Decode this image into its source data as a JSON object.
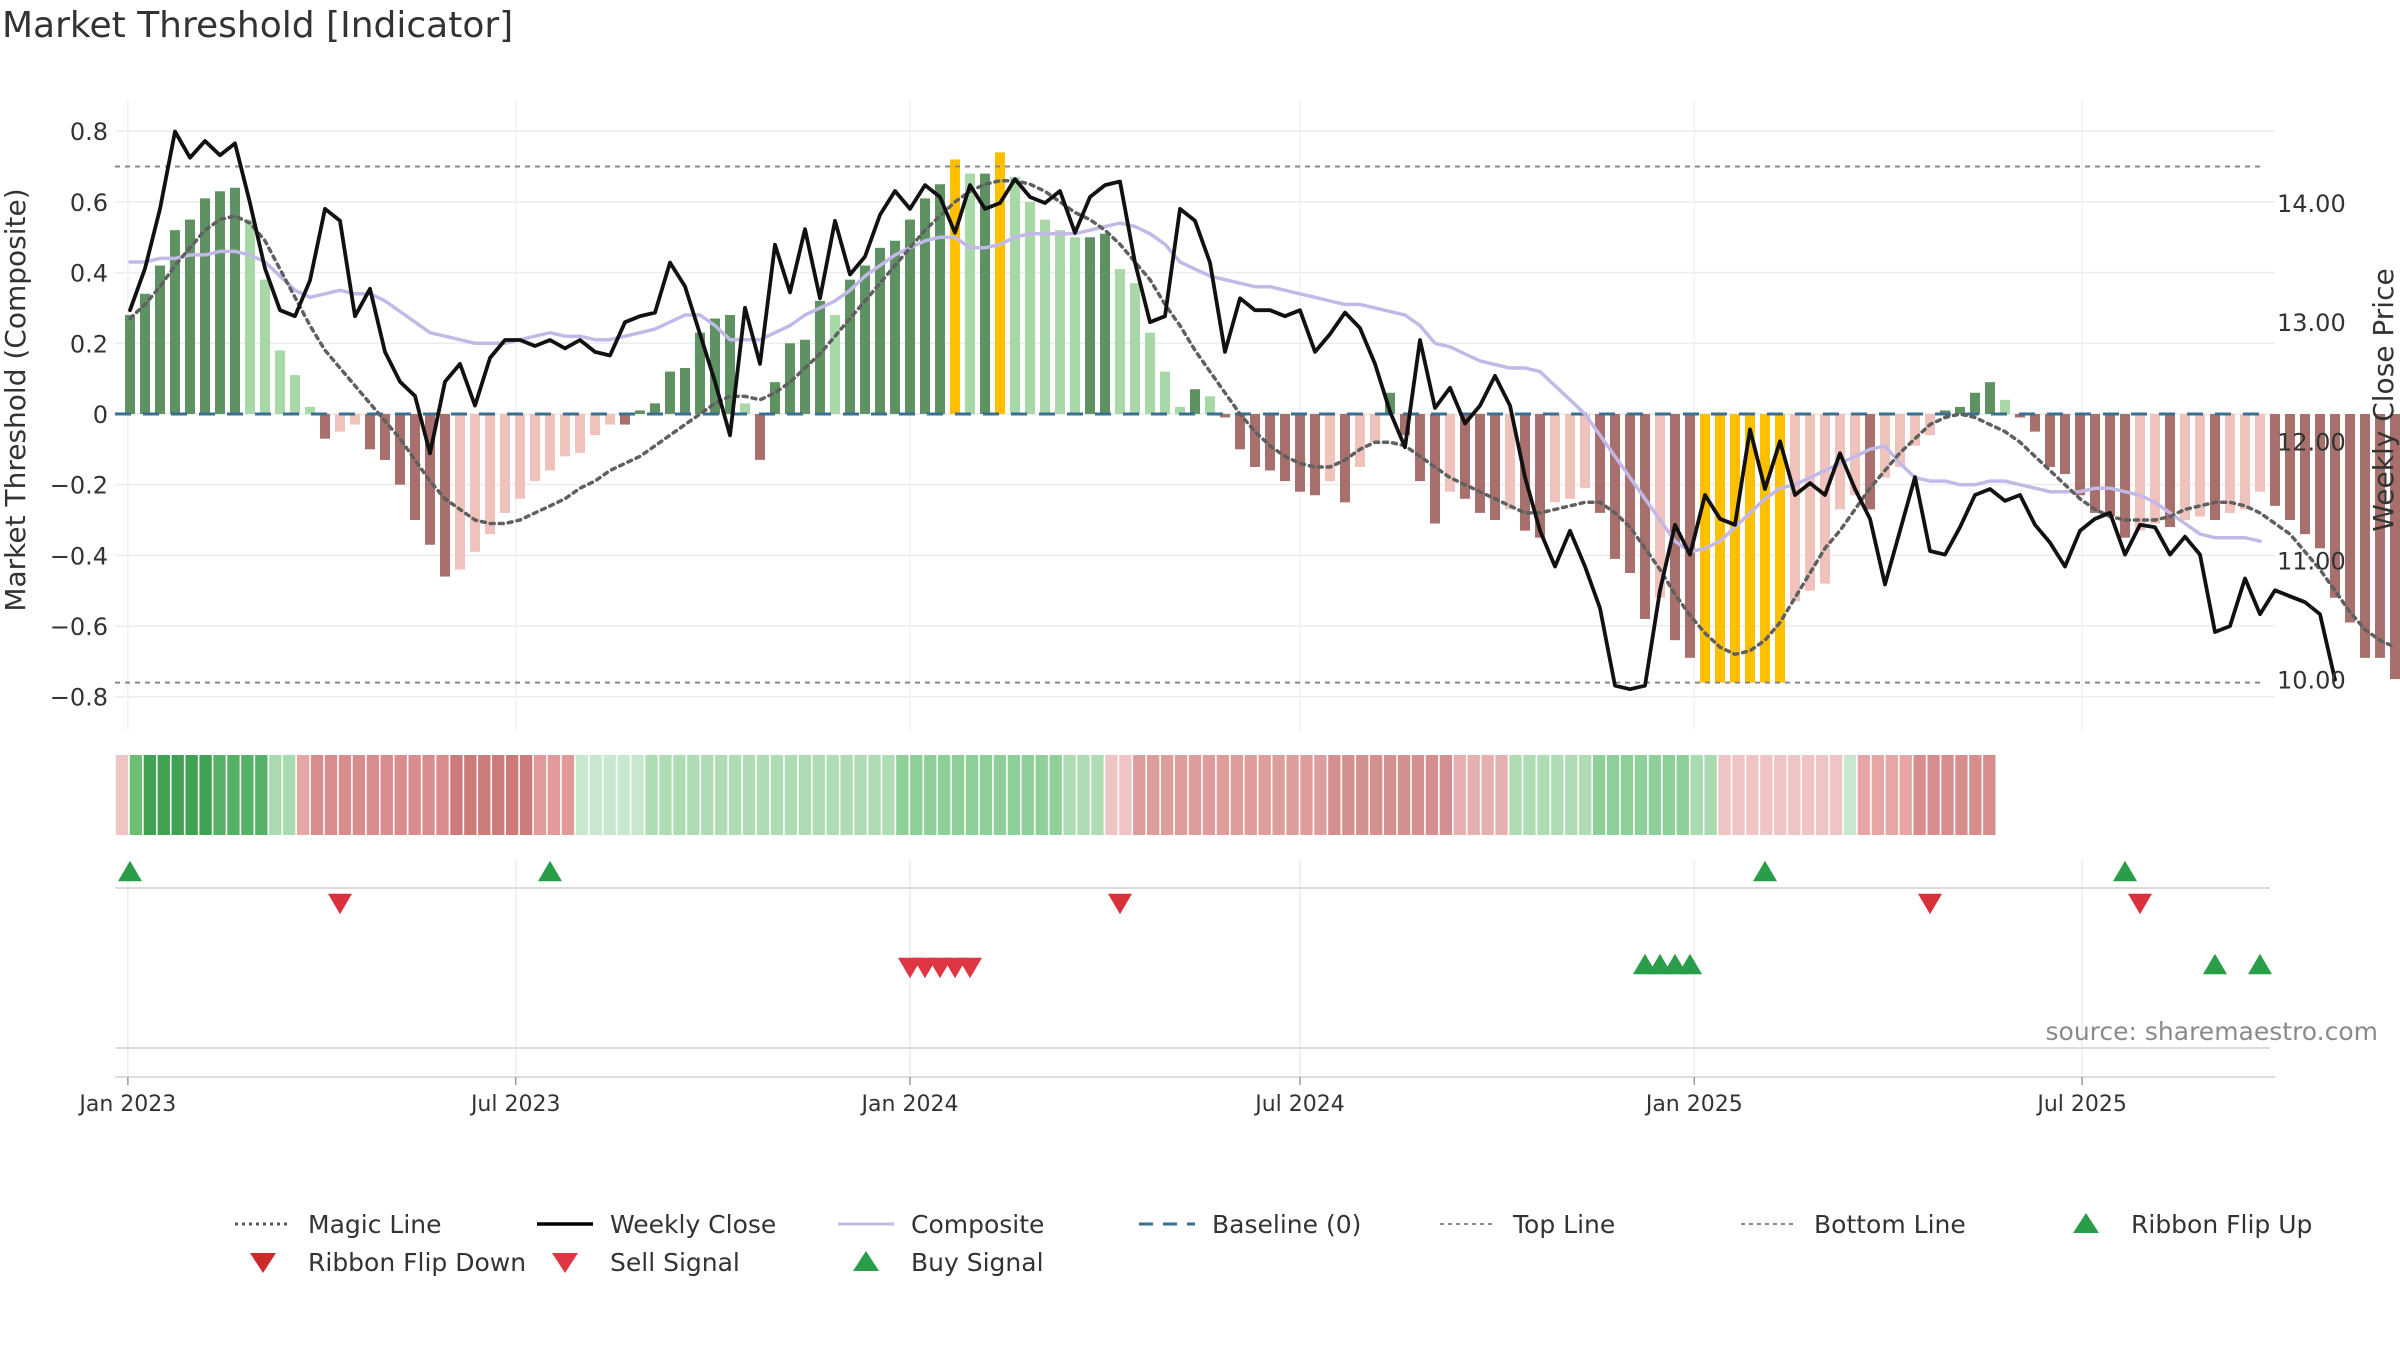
{
  "chart_data": {
    "type": "bar+line",
    "title": "Market Threshold [Indicator]",
    "source": "source: sharemaestro.com",
    "ylabel_left": "Market Threshold (Composite)",
    "ylabel_right": "Weekly Close Price",
    "ylim_left": [
      -0.88,
      0.86
    ],
    "ylim_right": [
      9.62,
      14.78
    ],
    "yticks_left": [
      0.8,
      0.6,
      0.4,
      0.2,
      0,
      -0.2,
      -0.4,
      -0.6,
      -0.8
    ],
    "yticks_left_labels": [
      "0.8",
      "0.6",
      "0.4",
      "0.2",
      "0",
      "−0.2",
      "−0.4",
      "−0.6",
      "−0.8"
    ],
    "yticks_right": [
      14.0,
      13.0,
      12.0,
      11.0,
      10.0
    ],
    "yticks_right_labels": [
      "14.00",
      "13.00",
      "12.00",
      "11.00",
      "10.00"
    ],
    "x_start": "2022-12-26",
    "x_end": "2025-09-29",
    "xticks": [
      "2023-01-01",
      "2023-07-01",
      "2024-01-01",
      "2024-07-01",
      "2025-01-01",
      "2025-07-01"
    ],
    "xtick_labels": [
      "Jan 2023",
      "Jul 2023",
      "Jan 2024",
      "Jul 2024",
      "Jan 2025",
      "Jul 2025"
    ],
    "grid": true,
    "legend_position": "bottom",
    "top_line": 0.7,
    "bottom_line": -0.76,
    "composite_bars": [
      0.28,
      0.34,
      0.42,
      0.52,
      0.55,
      0.61,
      0.63,
      0.64,
      0.55,
      0.38,
      0.18,
      0.11,
      0.02,
      -0.07,
      -0.05,
      -0.03,
      -0.1,
      -0.13,
      -0.2,
      -0.3,
      -0.37,
      -0.46,
      -0.44,
      -0.39,
      -0.34,
      -0.28,
      -0.24,
      -0.19,
      -0.16,
      -0.12,
      -0.11,
      -0.06,
      -0.03,
      -0.03,
      0.01,
      0.03,
      0.12,
      0.13,
      0.23,
      0.27,
      0.28,
      0.03,
      -0.13,
      0.09,
      0.2,
      0.21,
      0.32,
      0.28,
      0.38,
      0.42,
      0.47,
      0.49,
      0.55,
      0.61,
      0.65,
      0.72,
      0.68,
      0.68,
      0.74,
      0.67,
      0.6,
      0.55,
      0.52,
      0.5,
      0.5,
      0.51,
      0.41,
      0.37,
      0.23,
      0.12,
      0.02,
      0.07,
      0.05,
      -0.01,
      -0.1,
      -0.15,
      -0.16,
      -0.19,
      -0.22,
      -0.23,
      -0.19,
      -0.25,
      -0.15,
      -0.08,
      0.06,
      -0.06,
      -0.19,
      -0.31,
      -0.22,
      -0.24,
      -0.28,
      -0.3,
      -0.27,
      -0.33,
      -0.35,
      -0.25,
      -0.24,
      -0.21,
      -0.28,
      -0.41,
      -0.45,
      -0.58,
      -0.52,
      -0.64,
      -0.69,
      -0.76,
      -0.76,
      -0.76,
      -0.76,
      -0.76,
      -0.76,
      -0.53,
      -0.5,
      -0.48,
      -0.27,
      -0.23,
      -0.27,
      -0.18,
      -0.15,
      -0.09,
      -0.06,
      0.01,
      0.02,
      0.06,
      0.09,
      0.04,
      -0.01,
      -0.05,
      -0.15,
      -0.17,
      -0.23,
      -0.28,
      -0.29,
      -0.35,
      -0.33,
      -0.31,
      -0.32,
      -0.3,
      -0.29,
      -0.3,
      -0.28,
      -0.27,
      -0.22,
      -0.26,
      -0.3,
      -0.34,
      -0.38,
      -0.52,
      -0.59,
      -0.69,
      -0.69,
      -0.75,
      -0.72,
      -0.73,
      -0.75
    ],
    "weekly_close": [
      13.1,
      13.45,
      13.95,
      14.6,
      14.38,
      14.52,
      14.4,
      14.5,
      14.0,
      13.45,
      13.1,
      13.05,
      13.35,
      13.95,
      13.85,
      13.05,
      13.28,
      12.75,
      12.5,
      12.38,
      11.9,
      12.5,
      12.65,
      12.3,
      12.7,
      12.85,
      12.85,
      12.8,
      12.85,
      12.78,
      12.85,
      12.75,
      12.72,
      13.0,
      13.05,
      13.08,
      13.5,
      13.3,
      12.9,
      12.5,
      12.05,
      13.12,
      12.65,
      13.65,
      13.25,
      13.78,
      13.2,
      13.85,
      13.4,
      13.55,
      13.9,
      14.1,
      13.95,
      14.15,
      14.05,
      13.75,
      14.15,
      13.95,
      14.0,
      14.2,
      14.05,
      14.0,
      14.1,
      13.75,
      14.05,
      14.15,
      14.18,
      13.5,
      13.0,
      13.05,
      13.95,
      13.85,
      13.5,
      12.75,
      13.2,
      13.1,
      13.1,
      13.05,
      13.1,
      12.75,
      12.9,
      13.08,
      12.95,
      12.65,
      12.25,
      11.95,
      12.85,
      12.28,
      12.45,
      12.15,
      12.3,
      12.55,
      12.3,
      11.7,
      11.25,
      10.95,
      11.25,
      10.95,
      10.6,
      9.95,
      9.92,
      9.95,
      10.75,
      11.3,
      11.05,
      11.55,
      11.35,
      11.3,
      12.1,
      11.6,
      12.0,
      11.55,
      11.65,
      11.55,
      11.9,
      11.6,
      11.35,
      10.8,
      11.25,
      11.7,
      11.08,
      11.05,
      11.28,
      11.55,
      11.6,
      11.5,
      11.55,
      11.3,
      11.15,
      10.95,
      11.25,
      11.35,
      11.4,
      11.05,
      11.3,
      11.28,
      11.05,
      11.2,
      11.05,
      10.4,
      10.45,
      10.85,
      10.55,
      10.75,
      10.7,
      10.65,
      10.55,
      10.0
    ],
    "magic_line": [
      0.27,
      0.31,
      0.36,
      0.42,
      0.47,
      0.52,
      0.55,
      0.56,
      0.54,
      0.49,
      0.41,
      0.33,
      0.25,
      0.18,
      0.13,
      0.08,
      0.03,
      -0.02,
      -0.07,
      -0.13,
      -0.19,
      -0.24,
      -0.27,
      -0.3,
      -0.31,
      -0.31,
      -0.3,
      -0.28,
      -0.26,
      -0.24,
      -0.21,
      -0.19,
      -0.16,
      -0.14,
      -0.12,
      -0.09,
      -0.06,
      -0.03,
      0.0,
      0.03,
      0.05,
      0.05,
      0.04,
      0.06,
      0.09,
      0.13,
      0.17,
      0.22,
      0.27,
      0.32,
      0.37,
      0.42,
      0.47,
      0.52,
      0.56,
      0.6,
      0.63,
      0.65,
      0.66,
      0.66,
      0.65,
      0.63,
      0.6,
      0.57,
      0.55,
      0.52,
      0.48,
      0.43,
      0.38,
      0.31,
      0.25,
      0.18,
      0.12,
      0.06,
      0.0,
      -0.05,
      -0.09,
      -0.12,
      -0.14,
      -0.15,
      -0.15,
      -0.13,
      -0.1,
      -0.08,
      -0.08,
      -0.09,
      -0.12,
      -0.15,
      -0.18,
      -0.2,
      -0.22,
      -0.24,
      -0.26,
      -0.28,
      -0.28,
      -0.27,
      -0.26,
      -0.25,
      -0.25,
      -0.28,
      -0.32,
      -0.38,
      -0.44,
      -0.51,
      -0.57,
      -0.62,
      -0.66,
      -0.68,
      -0.67,
      -0.64,
      -0.59,
      -0.52,
      -0.45,
      -0.38,
      -0.33,
      -0.27,
      -0.21,
      -0.16,
      -0.11,
      -0.07,
      -0.03,
      -0.01,
      0.0,
      -0.01,
      -0.03,
      -0.05,
      -0.08,
      -0.12,
      -0.16,
      -0.2,
      -0.24,
      -0.27,
      -0.29,
      -0.3,
      -0.3,
      -0.3,
      -0.29,
      -0.27,
      -0.26,
      -0.25,
      -0.25,
      -0.26,
      -0.28,
      -0.31,
      -0.34,
      -0.39,
      -0.44,
      -0.5,
      -0.56,
      -0.61,
      -0.64,
      -0.66
    ],
    "composite_smoothed": [
      0.43,
      0.43,
      0.44,
      0.44,
      0.45,
      0.45,
      0.46,
      0.46,
      0.45,
      0.43,
      0.39,
      0.35,
      0.33,
      0.34,
      0.35,
      0.34,
      0.34,
      0.32,
      0.29,
      0.26,
      0.23,
      0.22,
      0.21,
      0.2,
      0.2,
      0.2,
      0.21,
      0.22,
      0.23,
      0.22,
      0.22,
      0.21,
      0.21,
      0.22,
      0.23,
      0.24,
      0.26,
      0.28,
      0.28,
      0.25,
      0.21,
      0.21,
      0.21,
      0.23,
      0.25,
      0.28,
      0.3,
      0.32,
      0.35,
      0.39,
      0.42,
      0.45,
      0.47,
      0.49,
      0.5,
      0.5,
      0.47,
      0.47,
      0.48,
      0.5,
      0.51,
      0.51,
      0.51,
      0.51,
      0.52,
      0.53,
      0.54,
      0.53,
      0.51,
      0.48,
      0.43,
      0.41,
      0.39,
      0.38,
      0.37,
      0.36,
      0.36,
      0.35,
      0.34,
      0.33,
      0.32,
      0.31,
      0.31,
      0.3,
      0.29,
      0.28,
      0.25,
      0.2,
      0.19,
      0.17,
      0.15,
      0.14,
      0.13,
      0.13,
      0.12,
      0.08,
      0.04,
      0.0,
      -0.06,
      -0.12,
      -0.18,
      -0.24,
      -0.3,
      -0.36,
      -0.39,
      -0.38,
      -0.36,
      -0.32,
      -0.28,
      -0.24,
      -0.21,
      -0.2,
      -0.18,
      -0.16,
      -0.14,
      -0.12,
      -0.1,
      -0.09,
      -0.14,
      -0.18,
      -0.19,
      -0.19,
      -0.2,
      -0.2,
      -0.19,
      -0.19,
      -0.2,
      -0.21,
      -0.22,
      -0.22,
      -0.22,
      -0.21,
      -0.21,
      -0.22,
      -0.23,
      -0.25,
      -0.28,
      -0.31,
      -0.34,
      -0.35,
      -0.35,
      -0.35,
      -0.36
    ],
    "ribbon_bands": [
      {
        "color": "#efc4c4",
        "count": 1
      },
      {
        "color": "#6bbf72",
        "count": 1
      },
      {
        "color": "#3fa351",
        "count": 5
      },
      {
        "color": "#55b165",
        "count": 4
      },
      {
        "color": "#a8dbaf",
        "count": 2
      },
      {
        "color": "#e6a6a6",
        "count": 1
      },
      {
        "color": "#d88d8d",
        "count": 10
      },
      {
        "color": "#cc7a7a",
        "count": 6
      },
      {
        "color": "#e09a9a",
        "count": 3
      },
      {
        "color": "#c8e8cd",
        "count": 5
      },
      {
        "color": "#aedcb5",
        "count": 18
      },
      {
        "color": "#8fcf99",
        "count": 12
      },
      {
        "color": "#aedcb5",
        "count": 3
      },
      {
        "color": "#efc4c4",
        "count": 2
      },
      {
        "color": "#dd9d9d",
        "count": 14
      },
      {
        "color": "#d49090",
        "count": 9
      },
      {
        "color": "#e6b0b0",
        "count": 4
      },
      {
        "color": "#aedcb5",
        "count": 6
      },
      {
        "color": "#8fcf99",
        "count": 7
      },
      {
        "color": "#a8dbaf",
        "count": 2
      },
      {
        "color": "#efc4c4",
        "count": 9
      },
      {
        "color": "#c8e8cd",
        "count": 1
      },
      {
        "color": "#e6a6a6",
        "count": 4
      },
      {
        "color": "#d88d8d",
        "count": 6
      }
    ],
    "ribbon_flip_up": [
      "2023-01-02",
      "2023-07-17",
      "2025-02-03",
      "2025-07-21"
    ],
    "ribbon_flip_down": [
      "2023-04-10",
      "2024-04-08",
      "2025-04-21",
      "2025-07-28"
    ],
    "sell_signal": [
      "2024-01-01",
      "2024-01-08",
      "2024-01-15",
      "2024-01-22",
      "2024-01-29"
    ],
    "buy_signal": [
      "2024-12-09",
      "2024-12-16",
      "2024-12-23",
      "2024-12-30",
      "2025-09-01",
      "2025-09-22"
    ],
    "legend": [
      {
        "label": "Magic Line",
        "kind": "line",
        "color": "#555555",
        "dash": "3,4",
        "width": 3
      },
      {
        "label": "Weekly Close",
        "kind": "line",
        "color": "#000000",
        "dash": "",
        "width": 3.5
      },
      {
        "label": "Composite",
        "kind": "line",
        "color": "#c3b9e8",
        "dash": "",
        "width": 3
      },
      {
        "label": "Baseline (0)",
        "kind": "line",
        "color": "#3a6f8f",
        "dash": "14,10",
        "width": 3
      },
      {
        "label": "Top Line",
        "kind": "line",
        "color": "#888888",
        "dash": "4,4",
        "width": 2
      },
      {
        "label": "Bottom Line",
        "kind": "line",
        "color": "#888888",
        "dash": "4,4",
        "width": 2
      },
      {
        "label": "Ribbon Flip Up",
        "kind": "tri-up",
        "color": "#2a9d48"
      },
      {
        "label": "Ribbon Flip Down",
        "kind": "tri-down",
        "color": "#cc2a2a"
      },
      {
        "label": "Sell Signal",
        "kind": "tri-down",
        "color": "#e03545"
      },
      {
        "label": "Buy Signal",
        "kind": "tri-up",
        "color": "#2a9d48"
      }
    ],
    "colors": {
      "dark_green": "#5e9262",
      "light_green": "#a8d8a8",
      "dark_red": "#a8706c",
      "light_red": "#efc3bc",
      "gold": "#ffc000",
      "close_line": "#111111",
      "magic_line": "#606060",
      "composite_line": "#c3b9e8",
      "baseline": "#3a6f8f",
      "threshold_lines": "#888888",
      "signal_up": "#2a9d48",
      "signal_down": "#d9303c",
      "grid": "#ececec"
    }
  }
}
